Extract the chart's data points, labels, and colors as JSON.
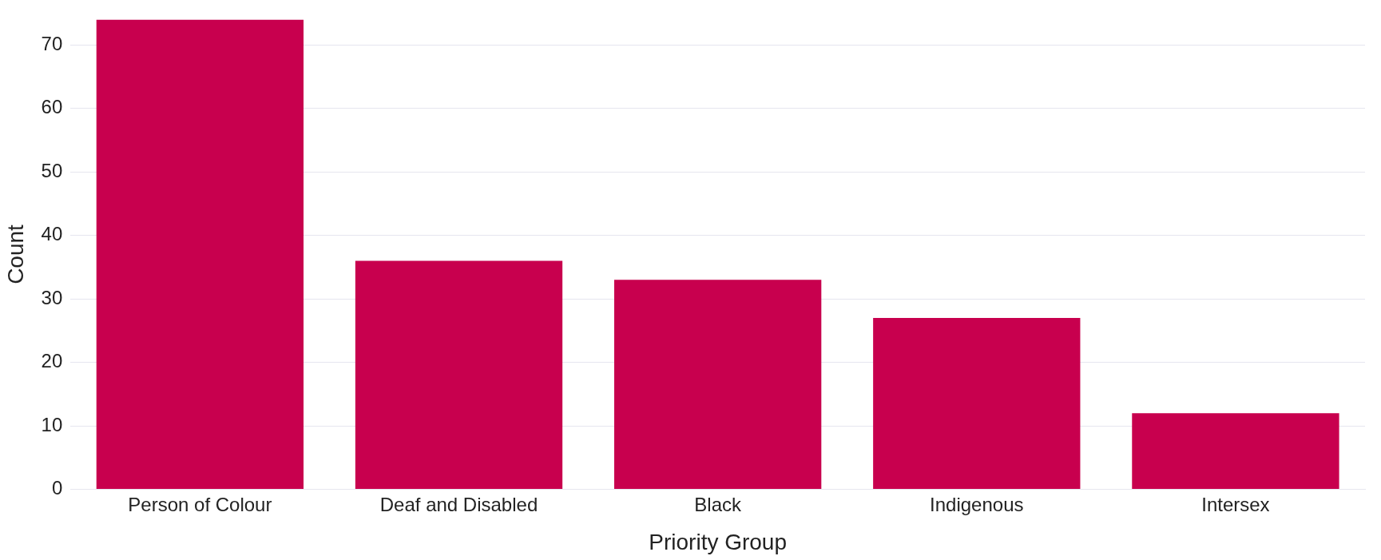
{
  "chart_data": {
    "type": "bar",
    "xlabel": "Priority Group",
    "ylabel": "Count",
    "categories": [
      "Person of Colour",
      "Deaf and Disabled",
      "Black",
      "Indigenous",
      "Intersex"
    ],
    "values": [
      74,
      36,
      33,
      27,
      12
    ],
    "color": "#c8004e",
    "ylim": [
      0,
      74
    ],
    "yticks": [
      0,
      10,
      20,
      30,
      40,
      50,
      60,
      70
    ],
    "grid": "y",
    "legend": false
  }
}
